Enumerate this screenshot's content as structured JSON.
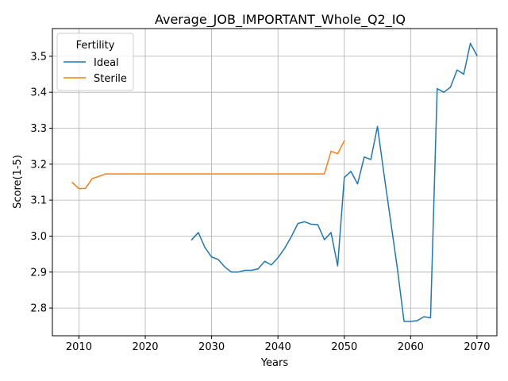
{
  "chart_data": {
    "type": "line",
    "title": "Average_JOB_IMPORTANT_Whole_Q2_IQ",
    "xlabel": "Years",
    "ylabel": "Score(1-5)",
    "xlim": [
      2006,
      2073
    ],
    "ylim": [
      2.723,
      3.577
    ],
    "xticks": [
      2010,
      2020,
      2030,
      2040,
      2050,
      2060,
      2070
    ],
    "yticks": [
      2.8,
      2.9,
      3.0,
      3.1,
      3.2,
      3.3,
      3.4,
      3.5
    ],
    "xtick_labels": [
      "2010",
      "2020",
      "2030",
      "2040",
      "2050",
      "2060",
      "2070"
    ],
    "ytick_labels": [
      "2.8",
      "2.9",
      "3.0",
      "3.1",
      "3.2",
      "3.3",
      "3.4",
      "3.5"
    ],
    "grid": true,
    "legend": {
      "title": "Fertility",
      "placement": "top-left"
    },
    "series": [
      {
        "name": "Ideal",
        "color": "#1f77b4",
        "x": [
          2027,
          2028,
          2029,
          2030,
          2031,
          2032,
          2033,
          2034,
          2035,
          2036,
          2037,
          2038,
          2039,
          2040,
          2041,
          2042,
          2043,
          2044,
          2045,
          2046,
          2047,
          2048,
          2049,
          2050,
          2051,
          2052,
          2053,
          2054,
          2055,
          2056,
          2057,
          2058,
          2059,
          2060,
          2061,
          2062,
          2063,
          2064,
          2065,
          2066,
          2067,
          2068,
          2069,
          2070
        ],
        "y": [
          2.99,
          3.01,
          2.968,
          2.942,
          2.935,
          2.914,
          2.9,
          2.9,
          2.905,
          2.905,
          2.909,
          2.93,
          2.92,
          2.94,
          2.966,
          2.998,
          3.035,
          3.04,
          3.033,
          3.032,
          2.99,
          3.01,
          2.917,
          3.163,
          3.18,
          3.145,
          3.22,
          3.213,
          3.305,
          3.17,
          3.04,
          2.91,
          2.763,
          2.763,
          2.765,
          2.776,
          2.773,
          3.41,
          3.4,
          3.414,
          3.462,
          3.45,
          3.536,
          3.502
        ]
      },
      {
        "name": "Sterile",
        "color": "#ff7f0e",
        "x": [
          2009,
          2010,
          2011,
          2012,
          2013,
          2014,
          2015,
          2016,
          2017,
          2018,
          2019,
          2020,
          2021,
          2022,
          2023,
          2024,
          2025,
          2026,
          2027,
          2028,
          2029,
          2030,
          2031,
          2032,
          2033,
          2034,
          2035,
          2036,
          2037,
          2038,
          2039,
          2040,
          2041,
          2042,
          2043,
          2044,
          2045,
          2046,
          2047,
          2048,
          2049,
          2050
        ],
        "y": [
          3.149,
          3.132,
          3.133,
          3.16,
          3.166,
          3.173,
          3.173,
          3.173,
          3.173,
          3.173,
          3.173,
          3.173,
          3.173,
          3.173,
          3.173,
          3.173,
          3.173,
          3.173,
          3.173,
          3.173,
          3.173,
          3.173,
          3.173,
          3.173,
          3.173,
          3.173,
          3.173,
          3.173,
          3.173,
          3.173,
          3.173,
          3.173,
          3.173,
          3.173,
          3.173,
          3.173,
          3.173,
          3.173,
          3.173,
          3.236,
          3.229,
          3.265
        ]
      }
    ]
  }
}
